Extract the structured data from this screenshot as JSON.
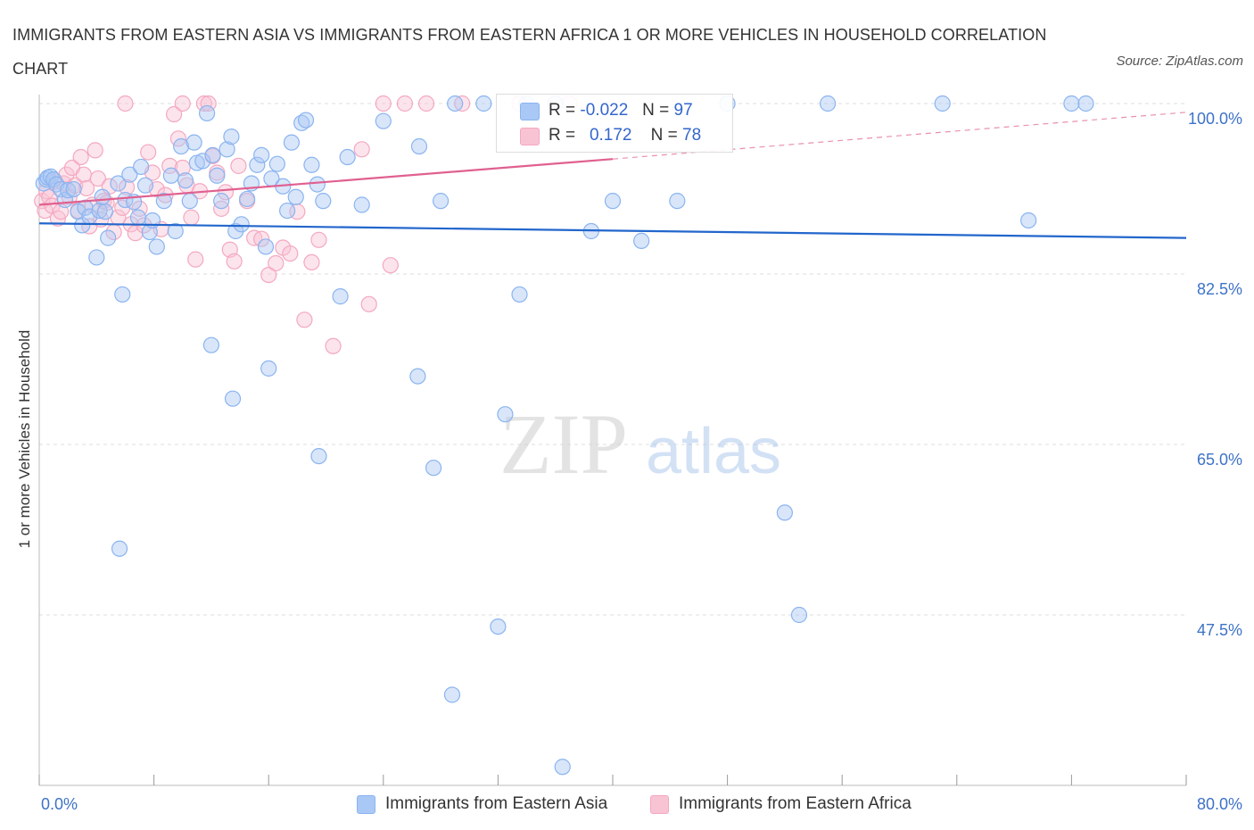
{
  "title": "IMMIGRANTS FROM EASTERN ASIA VS IMMIGRANTS FROM EASTERN AFRICA 1 OR MORE VEHICLES IN HOUSEHOLD CORRELATION CHART",
  "source": "Source: ZipAtlas.com",
  "watermark": {
    "zip": "ZIP",
    "atlas": "atlas"
  },
  "legend": {
    "r_label": "R =",
    "n_label": "N =",
    "series": [
      {
        "name": "Immigrants from Eastern Asia",
        "r": "-0.022",
        "n": "97",
        "color": "#8ab4f0",
        "fill": "#aac8f5",
        "line_color": "#2266cc"
      },
      {
        "name": "Immigrants from Eastern Africa",
        "r": "0.172",
        "n": "78",
        "color": "#f4a8c0",
        "fill": "#f8c4d4",
        "line_color": "#e06090"
      }
    ]
  },
  "chart_data": {
    "type": "scatter",
    "title": "IMMIGRANTS FROM EASTERN ASIA VS IMMIGRANTS FROM EASTERN AFRICA 1 OR MORE VEHICLES IN HOUSEHOLD CORRELATION CHART",
    "xlabel": "",
    "ylabel": "1 or more Vehicles in Household",
    "xlim": [
      0,
      80
    ],
    "ylim": [
      30,
      100
    ],
    "x_tick_labels": [
      "0.0%",
      "80.0%"
    ],
    "y_ticks": [
      {
        "value": 100,
        "label": "100.0%"
      },
      {
        "value": 82.5,
        "label": "82.5%"
      },
      {
        "value": 65,
        "label": "65.0%"
      },
      {
        "value": 47.5,
        "label": "47.5%"
      }
    ],
    "grid": true,
    "legend_position": "top-center",
    "series": [
      {
        "name": "Immigrants from Eastern Asia",
        "trend": {
          "x": [
            0,
            80
          ],
          "y": [
            87.7,
            86.2
          ],
          "dashed_from": null
        },
        "points": [
          [
            0.3,
            91.8
          ],
          [
            0.5,
            92.2
          ],
          [
            0.6,
            92.4
          ],
          [
            0.8,
            92.5
          ],
          [
            1.0,
            92.2
          ],
          [
            1.2,
            91.7
          ],
          [
            1.5,
            91.2
          ],
          [
            1.8,
            90.1
          ],
          [
            2.0,
            91.1
          ],
          [
            2.4,
            91.2
          ],
          [
            2.7,
            88.9
          ],
          [
            3.0,
            87.5
          ],
          [
            3.2,
            89.3
          ],
          [
            3.5,
            88.4
          ],
          [
            4.0,
            84.2
          ],
          [
            4.2,
            89.0
          ],
          [
            4.4,
            90.4
          ],
          [
            4.6,
            88.9
          ],
          [
            4.8,
            86.2
          ],
          [
            5.5,
            91.8
          ],
          [
            5.8,
            80.4
          ],
          [
            6.0,
            90.1
          ],
          [
            6.3,
            92.7
          ],
          [
            6.6,
            89.9
          ],
          [
            6.9,
            88.3
          ],
          [
            7.1,
            93.5
          ],
          [
            7.4,
            91.6
          ],
          [
            7.7,
            86.8
          ],
          [
            7.9,
            88.0
          ],
          [
            8.2,
            85.3
          ],
          [
            8.7,
            90.0
          ],
          [
            9.2,
            92.6
          ],
          [
            9.5,
            86.9
          ],
          [
            9.9,
            95.6
          ],
          [
            10.2,
            92.1
          ],
          [
            10.5,
            90.0
          ],
          [
            10.8,
            96.0
          ],
          [
            11.0,
            93.9
          ],
          [
            11.4,
            94.1
          ],
          [
            11.7,
            99.0
          ],
          [
            12.1,
            94.7
          ],
          [
            12.4,
            92.6
          ],
          [
            12.7,
            90.0
          ],
          [
            13.1,
            95.3
          ],
          [
            13.4,
            96.6
          ],
          [
            13.7,
            86.9
          ],
          [
            14.1,
            87.6
          ],
          [
            14.5,
            90.2
          ],
          [
            14.8,
            91.8
          ],
          [
            15.2,
            93.7
          ],
          [
            15.5,
            94.7
          ],
          [
            15.8,
            85.3
          ],
          [
            16.2,
            92.3
          ],
          [
            16.6,
            93.8
          ],
          [
            17.0,
            91.5
          ],
          [
            17.3,
            89.0
          ],
          [
            17.6,
            96.0
          ],
          [
            17.9,
            90.4
          ],
          [
            18.3,
            98.0
          ],
          [
            18.6,
            98.3
          ],
          [
            19.0,
            93.7
          ],
          [
            19.4,
            91.7
          ],
          [
            19.8,
            90.0
          ],
          [
            21.0,
            80.2
          ],
          [
            21.5,
            94.5
          ],
          [
            22.5,
            89.6
          ],
          [
            24.0,
            98.2
          ],
          [
            26.5,
            95.6
          ],
          [
            28.0,
            90.0
          ],
          [
            29.0,
            100.0
          ],
          [
            31.0,
            100.0
          ],
          [
            33.5,
            80.4
          ],
          [
            34.0,
            100.0
          ],
          [
            36.0,
            100.0
          ],
          [
            38.5,
            86.9
          ],
          [
            40.0,
            90.0
          ],
          [
            42.0,
            85.9
          ],
          [
            44.5,
            90.0
          ],
          [
            48.0,
            100.0
          ],
          [
            52.0,
            58.0
          ],
          [
            53.0,
            47.5
          ],
          [
            55.0,
            100.0
          ],
          [
            63.0,
            100.0
          ],
          [
            69.0,
            88.0
          ],
          [
            72.0,
            100.0
          ],
          [
            73.0,
            100.0
          ],
          [
            12.0,
            75.2
          ],
          [
            13.5,
            69.7
          ],
          [
            16.0,
            72.8
          ],
          [
            19.5,
            63.8
          ],
          [
            27.5,
            62.6
          ],
          [
            32.5,
            68.1
          ],
          [
            5.6,
            54.3
          ],
          [
            32.0,
            46.3
          ],
          [
            28.8,
            39.3
          ],
          [
            36.5,
            31.9
          ],
          [
            26.4,
            72.0
          ]
        ]
      },
      {
        "name": "Immigrants from Eastern Africa",
        "trend": {
          "x": [
            0,
            40
          ],
          "y": [
            89.6,
            94.3
          ],
          "dashed_from": 40,
          "dash_end": [
            80,
            99.1
          ]
        },
        "points": [
          [
            0.2,
            90.0
          ],
          [
            0.4,
            89.0
          ],
          [
            0.5,
            91.0
          ],
          [
            0.7,
            90.4
          ],
          [
            0.9,
            89.5
          ],
          [
            1.1,
            92.0
          ],
          [
            1.3,
            88.2
          ],
          [
            1.5,
            88.9
          ],
          [
            1.7,
            91.8
          ],
          [
            1.9,
            92.7
          ],
          [
            2.1,
            90.4
          ],
          [
            2.3,
            93.4
          ],
          [
            2.5,
            91.6
          ],
          [
            2.7,
            89.0
          ],
          [
            2.9,
            94.5
          ],
          [
            3.1,
            92.7
          ],
          [
            3.3,
            91.3
          ],
          [
            3.5,
            87.4
          ],
          [
            3.7,
            89.6
          ],
          [
            3.9,
            95.2
          ],
          [
            4.1,
            92.3
          ],
          [
            4.3,
            88.1
          ],
          [
            4.5,
            90.0
          ],
          [
            4.7,
            89.8
          ],
          [
            4.9,
            91.5
          ],
          [
            5.2,
            86.8
          ],
          [
            5.5,
            88.3
          ],
          [
            5.8,
            89.3
          ],
          [
            6.1,
            91.4
          ],
          [
            6.4,
            87.6
          ],
          [
            6.7,
            86.7
          ],
          [
            7.0,
            89.2
          ],
          [
            7.3,
            87.5
          ],
          [
            7.6,
            95.0
          ],
          [
            7.9,
            92.9
          ],
          [
            8.2,
            91.2
          ],
          [
            8.5,
            87.1
          ],
          [
            8.8,
            90.6
          ],
          [
            9.1,
            93.6
          ],
          [
            9.4,
            98.9
          ],
          [
            9.7,
            96.4
          ],
          [
            10.0,
            93.4
          ],
          [
            10.3,
            91.6
          ],
          [
            10.6,
            88.3
          ],
          [
            10.9,
            84.0
          ],
          [
            11.2,
            91.0
          ],
          [
            11.5,
            100.0
          ],
          [
            11.8,
            100.0
          ],
          [
            12.1,
            94.6
          ],
          [
            12.4,
            92.9
          ],
          [
            12.7,
            89.2
          ],
          [
            13.0,
            90.9
          ],
          [
            13.3,
            85.0
          ],
          [
            13.6,
            83.8
          ],
          [
            13.9,
            93.6
          ],
          [
            14.5,
            90.0
          ],
          [
            15.0,
            86.2
          ],
          [
            15.5,
            86.1
          ],
          [
            16.0,
            82.4
          ],
          [
            16.5,
            83.6
          ],
          [
            17.0,
            85.2
          ],
          [
            17.5,
            84.6
          ],
          [
            18.0,
            88.9
          ],
          [
            18.5,
            77.8
          ],
          [
            19.0,
            83.7
          ],
          [
            19.5,
            86.0
          ],
          [
            20.5,
            75.1
          ],
          [
            22.5,
            95.3
          ],
          [
            23.0,
            79.4
          ],
          [
            24.0,
            100.0
          ],
          [
            24.5,
            83.4
          ],
          [
            25.5,
            100.0
          ],
          [
            27.0,
            100.0
          ],
          [
            29.5,
            100.0
          ],
          [
            33.5,
            100.0
          ],
          [
            37.0,
            100.0
          ],
          [
            6.0,
            100.0
          ],
          [
            10.0,
            100.0
          ]
        ]
      }
    ]
  }
}
